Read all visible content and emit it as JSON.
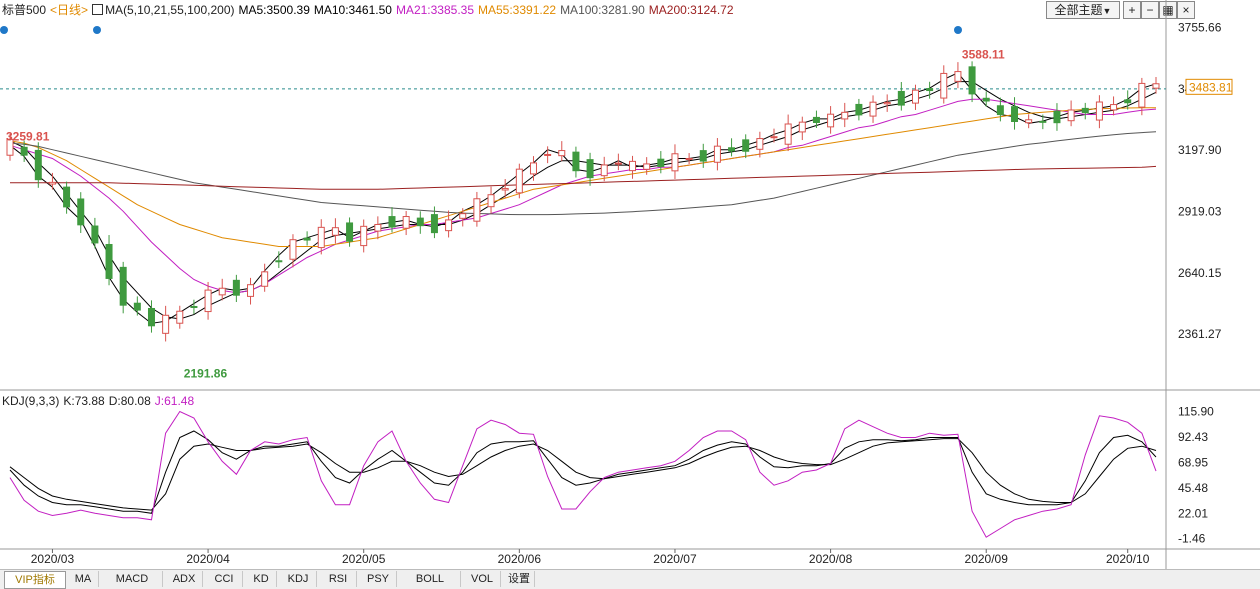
{
  "header": {
    "symbol": "标普500",
    "period": "<日线>",
    "ma_params": "MA(5,10,21,55,100,200)",
    "ma5": "MA5:3500.39",
    "ma10": "MA10:3461.50",
    "ma21": "MA21:3385.35",
    "ma55": "MA55:3391.22",
    "ma100": "MA100:3281.90",
    "ma200": "MA200:3124.72",
    "theme_button": "全部主题"
  },
  "kdj_header": {
    "params": "KDJ(9,3,3)",
    "k": "K:73.88",
    "d": "D:80.08",
    "j": "J:61.48"
  },
  "tabs": [
    "VIP指标",
    "MA",
    "MACD",
    "ADX",
    "CCI",
    "KD",
    "KDJ",
    "RSI",
    "PSY",
    "BOLL",
    "VOL",
    "设置"
  ],
  "active_tab": "VIP指标",
  "colors": {
    "up": "#d9534f",
    "down": "#3f9a3f",
    "ma5": "#000000",
    "ma10": "#000000",
    "ma21": "#c21fc2",
    "ma55": "#e08a00",
    "ma100": "#555555",
    "ma200": "#9b2020",
    "k": "#000000",
    "d": "#000000",
    "j": "#c21fc2",
    "price_tag": "#e08a00"
  },
  "chart_data": [
    {
      "type": "candlestick",
      "title": "标普500",
      "x_labels": [
        "2020/03",
        "2020/04",
        "2020/05",
        "2020/06",
        "2020/07",
        "2020/08",
        "2020/09",
        "2020/10"
      ],
      "y_ticks": [
        "3755.66",
        "3476.79",
        "3197.90",
        "2919.03",
        "2640.15",
        "2361.27"
      ],
      "ylim": [
        2130,
        3790
      ],
      "current_price": "3483.81",
      "annotations": {
        "high": "3588.11",
        "low": "2191.86",
        "start_level": "3259.81"
      },
      "series": [
        {
          "name": "MA5",
          "values": [
            3220,
            3170,
            3080,
            3030,
            2940,
            2880,
            2760,
            2620,
            2520,
            2460,
            2410,
            2420,
            2460,
            2500,
            2540,
            2570,
            2560,
            2570,
            2650,
            2720,
            2780,
            2800,
            2820,
            2840,
            2800,
            2830,
            2860,
            2870,
            2880,
            2860,
            2850,
            2870,
            2920,
            2950,
            2990,
            3040,
            3090,
            3140,
            3200,
            3180,
            3110,
            3100,
            3120,
            3150,
            3120,
            3130,
            3140,
            3160,
            3160,
            3170,
            3200,
            3200,
            3220,
            3240,
            3270,
            3290,
            3320,
            3340,
            3340,
            3370,
            3380,
            3400,
            3420,
            3430,
            3460,
            3480,
            3520,
            3550,
            3470,
            3400,
            3360,
            3350,
            3320,
            3330,
            3350,
            3370,
            3380,
            3390,
            3400,
            3430,
            3480,
            3500
          ]
        },
        {
          "name": "MA10",
          "values": [
            3240,
            3210,
            3140,
            3080,
            3000,
            2920,
            2840,
            2720,
            2620,
            2550,
            2480,
            2440,
            2430,
            2450,
            2490,
            2520,
            2550,
            2560,
            2590,
            2640,
            2690,
            2740,
            2790,
            2810,
            2820,
            2830,
            2840,
            2850,
            2860,
            2860,
            2860,
            2860,
            2880,
            2910,
            2950,
            2990,
            3030,
            3080,
            3120,
            3150,
            3150,
            3140,
            3130,
            3130,
            3130,
            3120,
            3130,
            3140,
            3150,
            3160,
            3180,
            3190,
            3200,
            3220,
            3240,
            3260,
            3290,
            3310,
            3330,
            3350,
            3360,
            3380,
            3400,
            3410,
            3430,
            3450,
            3480,
            3510,
            3510,
            3470,
            3430,
            3400,
            3370,
            3350,
            3340,
            3350,
            3360,
            3370,
            3380,
            3400,
            3430,
            3461
          ]
        },
        {
          "name": "MA21",
          "values": [
            3220,
            3200,
            3180,
            3160,
            3120,
            3080,
            3030,
            2980,
            2920,
            2850,
            2780,
            2720,
            2660,
            2610,
            2580,
            2560,
            2550,
            2560,
            2590,
            2630,
            2670,
            2710,
            2740,
            2770,
            2790,
            2810,
            2830,
            2840,
            2850,
            2860,
            2860,
            2870,
            2880,
            2890,
            2910,
            2930,
            2950,
            2980,
            3010,
            3040,
            3060,
            3080,
            3090,
            3100,
            3110,
            3110,
            3120,
            3120,
            3130,
            3140,
            3150,
            3160,
            3170,
            3180,
            3190,
            3210,
            3220,
            3240,
            3260,
            3280,
            3300,
            3310,
            3330,
            3350,
            3360,
            3380,
            3400,
            3420,
            3430,
            3430,
            3420,
            3410,
            3400,
            3390,
            3380,
            3370,
            3360,
            3360,
            3360,
            3370,
            3380,
            3385
          ]
        },
        {
          "name": "MA55",
          "values": [
            3240,
            3230,
            3210,
            3180,
            3150,
            3110,
            3070,
            3030,
            2990,
            2950,
            2920,
            2890,
            2860,
            2840,
            2820,
            2800,
            2790,
            2780,
            2770,
            2760,
            2760,
            2760,
            2760,
            2770,
            2780,
            2790,
            2800,
            2820,
            2840,
            2860,
            2880,
            2900,
            2920,
            2940,
            2960,
            2980,
            3000,
            3020,
            3030,
            3040,
            3050,
            3060,
            3070,
            3080,
            3090,
            3100,
            3110,
            3120,
            3130,
            3140,
            3150,
            3160,
            3170,
            3180,
            3190,
            3200,
            3210,
            3220,
            3230,
            3240,
            3250,
            3260,
            3270,
            3280,
            3290,
            3300,
            3310,
            3320,
            3330,
            3340,
            3350,
            3360,
            3365,
            3370,
            3375,
            3380,
            3383,
            3386,
            3388,
            3390,
            3391,
            3391
          ]
        },
        {
          "name": "MA100",
          "values": [
            3230,
            3225,
            3215,
            3200,
            3185,
            3170,
            3155,
            3140,
            3125,
            3110,
            3095,
            3080,
            3065,
            3050,
            3040,
            3030,
            3020,
            3010,
            3000,
            2990,
            2980,
            2970,
            2960,
            2955,
            2950,
            2945,
            2940,
            2935,
            2930,
            2925,
            2920,
            2915,
            2912,
            2910,
            2908,
            2906,
            2905,
            2905,
            2905,
            2906,
            2908,
            2910,
            2912,
            2915,
            2918,
            2922,
            2926,
            2930,
            2935,
            2940,
            2945,
            2950,
            2960,
            2970,
            2980,
            2995,
            3010,
            3025,
            3040,
            3055,
            3070,
            3085,
            3100,
            3115,
            3130,
            3145,
            3160,
            3175,
            3185,
            3195,
            3205,
            3215,
            3225,
            3232,
            3240,
            3248,
            3255,
            3262,
            3268,
            3274,
            3278,
            3282
          ]
        },
        {
          "name": "MA200",
          "values": [
            3050,
            3050,
            3050,
            3050,
            3050,
            3050,
            3050,
            3050,
            3048,
            3046,
            3044,
            3042,
            3040,
            3038,
            3036,
            3034,
            3032,
            3030,
            3028,
            3026,
            3024,
            3022,
            3020,
            3020,
            3020,
            3020,
            3020,
            3022,
            3024,
            3026,
            3028,
            3030,
            3032,
            3034,
            3036,
            3038,
            3040,
            3042,
            3044,
            3046,
            3048,
            3050,
            3052,
            3054,
            3056,
            3058,
            3060,
            3062,
            3064,
            3066,
            3068,
            3070,
            3072,
            3074,
            3076,
            3078,
            3080,
            3082,
            3084,
            3086,
            3088,
            3090,
            3092,
            3094,
            3096,
            3098,
            3100,
            3102,
            3104,
            3106,
            3108,
            3110,
            3112,
            3113,
            3114,
            3115,
            3116,
            3117,
            3118,
            3119,
            3120,
            3124
          ]
        }
      ]
    },
    {
      "type": "line",
      "title": "KDJ(9,3,3)",
      "y_ticks": [
        "115.90",
        "92.43",
        "68.95",
        "45.48",
        "22.01",
        "-1.46"
      ],
      "ylim": [
        -10,
        122
      ],
      "series": [
        {
          "name": "K",
          "values": [
            62,
            48,
            38,
            32,
            30,
            30,
            28,
            26,
            24,
            24,
            22,
            60,
            92,
            98,
            90,
            78,
            72,
            80,
            84,
            84,
            86,
            88,
            70,
            55,
            50,
            62,
            72,
            80,
            70,
            60,
            50,
            48,
            60,
            78,
            86,
            88,
            88,
            89,
            72,
            55,
            48,
            50,
            54,
            58,
            60,
            62,
            64,
            66,
            72,
            80,
            85,
            88,
            86,
            74,
            65,
            64,
            66,
            66,
            68,
            82,
            88,
            90,
            90,
            89,
            90,
            92,
            92,
            92,
            60,
            40,
            35,
            32,
            30,
            30,
            30,
            32,
            52,
            78,
            92,
            94,
            88,
            74
          ]
        },
        {
          "name": "D",
          "values": [
            65,
            55,
            45,
            38,
            35,
            33,
            31,
            29,
            27,
            26,
            25,
            40,
            72,
            84,
            86,
            83,
            80,
            80,
            82,
            83,
            84,
            86,
            78,
            68,
            60,
            60,
            64,
            70,
            70,
            66,
            60,
            56,
            58,
            66,
            74,
            80,
            84,
            86,
            80,
            70,
            60,
            55,
            54,
            56,
            58,
            60,
            62,
            64,
            68,
            74,
            79,
            83,
            84,
            80,
            74,
            70,
            68,
            67,
            67,
            72,
            78,
            84,
            87,
            88,
            89,
            90,
            91,
            91,
            78,
            60,
            48,
            40,
            35,
            33,
            32,
            32,
            40,
            56,
            72,
            82,
            84,
            80
          ]
        },
        {
          "name": "J",
          "values": [
            55,
            34,
            24,
            20,
            22,
            25,
            22,
            20,
            18,
            18,
            16,
            96,
            116,
            110,
            88,
            70,
            58,
            80,
            88,
            86,
            90,
            92,
            52,
            30,
            30,
            66,
            88,
            98,
            70,
            50,
            35,
            32,
            66,
            100,
            108,
            104,
            96,
            95,
            56,
            26,
            26,
            42,
            55,
            60,
            62,
            64,
            66,
            70,
            80,
            92,
            98,
            98,
            90,
            60,
            48,
            52,
            60,
            62,
            68,
            100,
            108,
            102,
            96,
            92,
            92,
            96,
            94,
            95,
            24,
            0,
            8,
            16,
            20,
            24,
            26,
            30,
            76,
            112,
            110,
            106,
            96,
            61
          ]
        }
      ]
    }
  ]
}
